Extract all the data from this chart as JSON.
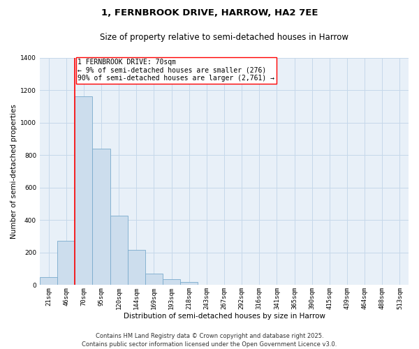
{
  "title_line1": "1, FERNBROOK DRIVE, HARROW, HA2 7EE",
  "title_line2": "Size of property relative to semi-detached houses in Harrow",
  "xlabel": "Distribution of semi-detached houses by size in Harrow",
  "ylabel": "Number of semi-detached properties",
  "bar_labels": [
    "21sqm",
    "46sqm",
    "70sqm",
    "95sqm",
    "120sqm",
    "144sqm",
    "169sqm",
    "193sqm",
    "218sqm",
    "243sqm",
    "267sqm",
    "292sqm",
    "316sqm",
    "341sqm",
    "365sqm",
    "390sqm",
    "415sqm",
    "439sqm",
    "464sqm",
    "488sqm",
    "513sqm"
  ],
  "bar_values": [
    50,
    270,
    1160,
    840,
    425,
    215,
    70,
    35,
    20,
    0,
    0,
    0,
    0,
    0,
    0,
    0,
    0,
    0,
    0,
    0,
    0
  ],
  "bar_color": "#ccdded",
  "bar_edge_color": "#7aabcc",
  "property_line_index": 2,
  "property_line_color": "red",
  "annotation_title": "1 FERNBROOK DRIVE: 70sqm",
  "annotation_line2": "← 9% of semi-detached houses are smaller (276)",
  "annotation_line3": "90% of semi-detached houses are larger (2,761) →",
  "annotation_box_color": "red",
  "annotation_bg": "white",
  "ylim": [
    0,
    1400
  ],
  "yticks": [
    0,
    200,
    400,
    600,
    800,
    1000,
    1200,
    1400
  ],
  "grid_color": "#c5d8ea",
  "background_color": "#e8f0f8",
  "footer_line1": "Contains HM Land Registry data © Crown copyright and database right 2025.",
  "footer_line2": "Contains public sector information licensed under the Open Government Licence v3.0.",
  "title_fontsize": 9.5,
  "subtitle_fontsize": 8.5,
  "axis_label_fontsize": 7.5,
  "tick_fontsize": 6.5,
  "annotation_fontsize": 7,
  "footer_fontsize": 6
}
